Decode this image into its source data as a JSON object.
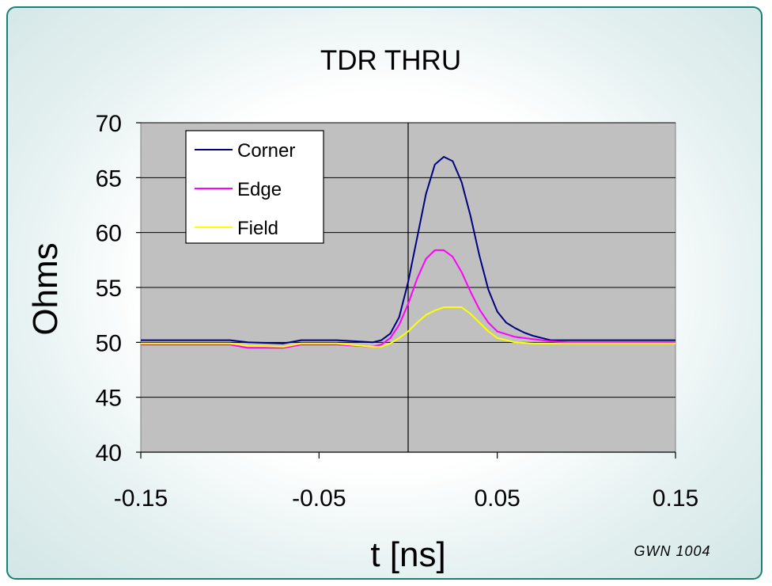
{
  "chart_data": {
    "type": "line",
    "title": "TDR THRU",
    "xlabel": "t [ns]",
    "ylabel": "Ohms",
    "xlim": [
      -0.15,
      0.15
    ],
    "ylim": [
      40,
      70
    ],
    "xticks": [
      "-0.15",
      "-0.05",
      "0.05",
      "0.15"
    ],
    "xtick_values": [
      -0.15,
      -0.05,
      0.05,
      0.15
    ],
    "yticks": [
      "70",
      "65",
      "60",
      "55",
      "50",
      "45",
      "40"
    ],
    "ytick_values": [
      70,
      65,
      60,
      55,
      50,
      45,
      40
    ],
    "grid": "horizontal",
    "plot_background": "#c0c0c0",
    "legend_position": "top-left",
    "annotation": "GWN 1004",
    "series": [
      {
        "name": "Corner",
        "color": "#000080",
        "x": [
          -0.15,
          -0.1,
          -0.09,
          -0.07,
          -0.06,
          -0.04,
          -0.02,
          -0.015,
          -0.01,
          -0.005,
          0.0,
          0.005,
          0.01,
          0.015,
          0.02,
          0.025,
          0.03,
          0.035,
          0.04,
          0.045,
          0.05,
          0.055,
          0.06,
          0.065,
          0.07,
          0.075,
          0.08,
          0.09,
          0.1,
          0.15
        ],
        "y": [
          50.2,
          50.2,
          50.0,
          49.9,
          50.2,
          50.2,
          50.0,
          50.2,
          50.8,
          52.3,
          55.5,
          59.5,
          63.5,
          66.2,
          66.9,
          66.5,
          64.6,
          61.5,
          57.9,
          54.8,
          52.8,
          51.8,
          51.3,
          50.9,
          50.6,
          50.4,
          50.2,
          50.2,
          50.2,
          50.2
        ]
      },
      {
        "name": "Edge",
        "color": "#ff00ff",
        "x": [
          -0.15,
          -0.1,
          -0.09,
          -0.07,
          -0.06,
          -0.04,
          -0.02,
          -0.015,
          -0.01,
          -0.005,
          0.0,
          0.005,
          0.01,
          0.015,
          0.02,
          0.025,
          0.03,
          0.035,
          0.04,
          0.045,
          0.05,
          0.06,
          0.07,
          0.08,
          0.09,
          0.15
        ],
        "y": [
          49.8,
          49.8,
          49.5,
          49.5,
          49.8,
          49.8,
          49.6,
          49.8,
          50.4,
          51.6,
          53.5,
          55.8,
          57.6,
          58.4,
          58.4,
          57.8,
          56.4,
          54.6,
          53.0,
          51.8,
          51.0,
          50.5,
          50.3,
          50.1,
          50.0,
          50.0
        ]
      },
      {
        "name": "Field",
        "color": "#ffff00",
        "x": [
          -0.15,
          -0.1,
          -0.09,
          -0.07,
          -0.06,
          -0.04,
          -0.02,
          -0.015,
          -0.01,
          -0.005,
          0.0,
          0.005,
          0.01,
          0.015,
          0.02,
          0.025,
          0.03,
          0.035,
          0.04,
          0.045,
          0.05,
          0.06,
          0.07,
          0.15
        ],
        "y": [
          49.9,
          49.9,
          49.7,
          49.6,
          49.9,
          49.9,
          49.6,
          49.6,
          49.9,
          50.4,
          51.0,
          51.8,
          52.5,
          52.9,
          53.2,
          53.2,
          53.2,
          52.6,
          51.8,
          51.0,
          50.4,
          50.0,
          49.9,
          49.9
        ]
      }
    ]
  }
}
